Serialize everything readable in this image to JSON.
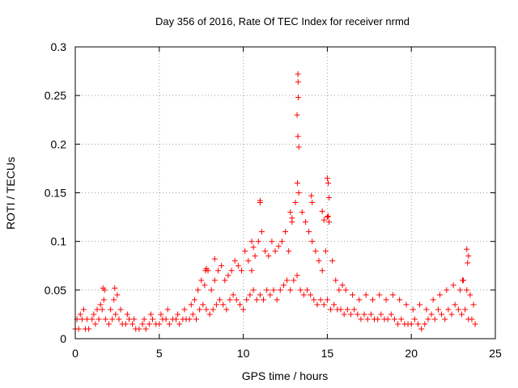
{
  "chart_data": {
    "type": "scatter",
    "title": "Day 356 of 2016, Rate Of TEC Index for receiver nrmd",
    "xlabel": "GPS time / hours",
    "ylabel": "ROTI / TECUs",
    "xlim": [
      0,
      25
    ],
    "ylim": [
      0,
      0.3
    ],
    "xticks": [
      "0",
      "5",
      "10",
      "15",
      "20",
      "25"
    ],
    "yticks": [
      "0",
      "0.05",
      "0.1",
      "0.15",
      "0.2",
      "0.25",
      "0.3"
    ],
    "grid": true,
    "marker": "plus",
    "color": "#ff0000",
    "series": [
      {
        "x": [
          0.0,
          0.2,
          0.4,
          0.6,
          0.8,
          1.0,
          1.2,
          1.4,
          1.6,
          1.8,
          2.0,
          2.2,
          2.4,
          2.6,
          2.8,
          3.0,
          3.2,
          3.4,
          3.6,
          3.8,
          4.0,
          4.2,
          4.4,
          4.6,
          4.8,
          5.0,
          5.2,
          5.4,
          5.6,
          5.8,
          6.0,
          6.2,
          6.4,
          6.6,
          6.8,
          7.0,
          7.2,
          7.4,
          7.6,
          7.8,
          8.0,
          8.2,
          8.4,
          8.6,
          8.8,
          9.0,
          9.2,
          9.4,
          9.6,
          9.8,
          10.0,
          10.2,
          10.4,
          10.6,
          10.8,
          11.0,
          11.2,
          11.4,
          11.6,
          11.8,
          12.0,
          12.2,
          12.4,
          12.6,
          12.8,
          13.0,
          13.2,
          13.4,
          13.6,
          13.8,
          14.0,
          14.2,
          14.4,
          14.6,
          14.8,
          15.0,
          15.2,
          15.4,
          15.6,
          15.8,
          16.0,
          16.2,
          16.4,
          16.6,
          16.8,
          17.0,
          17.2,
          17.4,
          17.6,
          17.8,
          18.0,
          18.2,
          18.4,
          18.6,
          18.8,
          19.0,
          19.2,
          19.4,
          19.6,
          19.8,
          20.0,
          20.2,
          20.4,
          20.6,
          20.8,
          21.0,
          21.2,
          21.4,
          21.6,
          21.8,
          22.0,
          22.2,
          22.4,
          22.6,
          22.8,
          23.0,
          23.2,
          23.4,
          23.6,
          23.8
        ],
        "y": [
          0.01,
          0.01,
          0.02,
          0.01,
          0.01,
          0.02,
          0.015,
          0.02,
          0.03,
          0.02,
          0.015,
          0.02,
          0.025,
          0.02,
          0.015,
          0.015,
          0.02,
          0.015,
          0.01,
          0.01,
          0.015,
          0.01,
          0.015,
          0.02,
          0.015,
          0.015,
          0.02,
          0.02,
          0.015,
          0.02,
          0.02,
          0.015,
          0.02,
          0.02,
          0.02,
          0.025,
          0.02,
          0.03,
          0.035,
          0.03,
          0.025,
          0.03,
          0.035,
          0.04,
          0.035,
          0.03,
          0.04,
          0.045,
          0.04,
          0.035,
          0.03,
          0.04,
          0.045,
          0.05,
          0.04,
          0.045,
          0.04,
          0.05,
          0.045,
          0.05,
          0.04,
          0.05,
          0.055,
          0.06,
          0.05,
          0.06,
          0.065,
          0.05,
          0.045,
          0.05,
          0.045,
          0.04,
          0.035,
          0.04,
          0.035,
          0.04,
          0.03,
          0.035,
          0.03,
          0.03,
          0.025,
          0.03,
          0.025,
          0.03,
          0.025,
          0.02,
          0.025,
          0.02,
          0.025,
          0.02,
          0.02,
          0.025,
          0.02,
          0.02,
          0.025,
          0.02,
          0.015,
          0.02,
          0.015,
          0.015,
          0.015,
          0.02,
          0.015,
          0.01,
          0.015,
          0.02,
          0.025,
          0.02,
          0.03,
          0.025,
          0.02,
          0.03,
          0.025,
          0.035,
          0.03,
          0.025,
          0.03,
          0.02,
          0.02,
          0.015
        ]
      },
      {
        "x": [
          0.1,
          0.3,
          0.5,
          0.7,
          1.1,
          1.3,
          1.5,
          1.7,
          1.75,
          2.1,
          2.3,
          2.5,
          2.7,
          3.1,
          3.5,
          4.1,
          4.5,
          5.1,
          5.5,
          6.1,
          6.5,
          6.9,
          7.1,
          7.3,
          7.5,
          7.7,
          7.9,
          8.1,
          8.3,
          8.5,
          8.7,
          8.9,
          9.1,
          9.3,
          9.5,
          9.7,
          9.9,
          10.1,
          10.3,
          10.5,
          10.7,
          10.9,
          11.0,
          11.1,
          11.3,
          11.5,
          11.7,
          11.9,
          12.1,
          12.3,
          12.5,
          12.7,
          12.9,
          13.1,
          13.3,
          13.5,
          13.7,
          13.9,
          14.1,
          14.3,
          14.5,
          14.7,
          14.9,
          15.1,
          15.3,
          15.5,
          15.7,
          15.9,
          16.1,
          16.5,
          16.9,
          17.3,
          17.7,
          18.1,
          18.5,
          18.9,
          19.3,
          19.7,
          20.1,
          20.5,
          20.9,
          21.3,
          21.7,
          22.1,
          22.5,
          22.9,
          23.1,
          23.3,
          23.5,
          23.7
        ],
        "y": [
          0.02,
          0.025,
          0.03,
          0.02,
          0.025,
          0.03,
          0.035,
          0.04,
          0.05,
          0.03,
          0.04,
          0.045,
          0.03,
          0.025,
          0.02,
          0.02,
          0.025,
          0.025,
          0.03,
          0.025,
          0.03,
          0.035,
          0.04,
          0.05,
          0.06,
          0.055,
          0.07,
          0.05,
          0.06,
          0.07,
          0.075,
          0.06,
          0.065,
          0.07,
          0.08,
          0.075,
          0.07,
          0.09,
          0.08,
          0.07,
          0.085,
          0.1,
          0.14,
          0.11,
          0.09,
          0.085,
          0.1,
          0.09,
          0.095,
          0.1,
          0.11,
          0.09,
          0.12,
          0.14,
          0.15,
          0.13,
          0.12,
          0.11,
          0.1,
          0.09,
          0.08,
          0.07,
          0.09,
          0.12,
          0.08,
          0.06,
          0.05,
          0.055,
          0.05,
          0.045,
          0.04,
          0.045,
          0.04,
          0.045,
          0.04,
          0.045,
          0.04,
          0.035,
          0.03,
          0.035,
          0.03,
          0.04,
          0.045,
          0.05,
          0.055,
          0.05,
          0.06,
          0.05,
          0.045,
          0.035
        ]
      },
      {
        "x": [
          13.25,
          13.26,
          13.27,
          13.2,
          13.25,
          13.3,
          13.22,
          15.0,
          15.05,
          15.1,
          15.0,
          14.8,
          14.7,
          11.0,
          12.8,
          12.9,
          14.05,
          14.1,
          15.05,
          23.3,
          23.4,
          23.35,
          23.05,
          7.8,
          7.75,
          8.3,
          10.5,
          10.6,
          1.65,
          2.35
        ],
        "y": [
          0.272,
          0.264,
          0.248,
          0.23,
          0.208,
          0.197,
          0.16,
          0.165,
          0.16,
          0.145,
          0.125,
          0.122,
          0.131,
          0.142,
          0.13,
          0.124,
          0.147,
          0.14,
          0.126,
          0.092,
          0.085,
          0.078,
          0.06,
          0.072,
          0.07,
          0.082,
          0.1,
          0.094,
          0.052,
          0.052
        ]
      }
    ]
  }
}
